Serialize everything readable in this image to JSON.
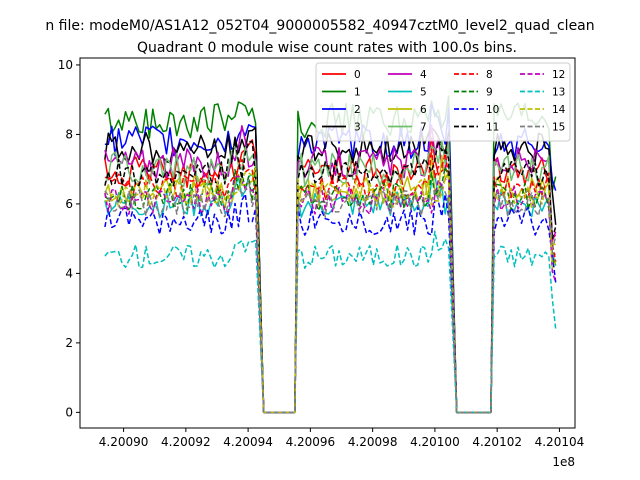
{
  "chart_data": {
    "type": "line",
    "suptitle": "n file: modeM0/AS1A12_052T04_9000005582_40947cztM0_level2_quad_clean",
    "title": "Quadrant 0 module wise count rates with 100.0s bins.",
    "xlabel": "",
    "ylabel": "",
    "x_offset_label": "1e8",
    "xlim": [
      4.200886,
      4.201045
    ],
    "ylim": [
      -0.45,
      10.2
    ],
    "x_ticks": [
      4.2009,
      4.20092,
      4.20094,
      4.20096,
      4.20098,
      4.201,
      4.20102,
      4.20104
    ],
    "x_tick_labels": [
      "4.20090",
      "4.20092",
      "4.20094",
      "4.20096",
      "4.20098",
      "4.20100",
      "4.20102",
      "4.20104"
    ],
    "y_ticks": [
      0,
      2,
      4,
      6,
      8,
      10
    ],
    "y_tick_labels": [
      "0",
      "2",
      "4",
      "6",
      "8",
      "10"
    ],
    "grid": false,
    "legend_placement": "top-right",
    "legend_columns": 4,
    "segments": [
      {
        "x_start": 4.200894,
        "x_end": 4.200943,
        "active": true
      },
      {
        "x_start": 4.200945,
        "x_end": 4.200955,
        "active": false
      },
      {
        "x_start": 4.200956,
        "x_end": 4.201005,
        "active": true
      },
      {
        "x_start": 4.201007,
        "x_end": 4.201018,
        "active": false
      },
      {
        "x_start": 4.201019,
        "x_end": 4.201039,
        "active": true
      }
    ],
    "series": [
      {
        "name": "0",
        "color": "#ff0000",
        "dash": "solid",
        "mean": 6.9,
        "amp": 0.45
      },
      {
        "name": "1",
        "color": "#008000",
        "dash": "solid",
        "mean": 8.4,
        "amp": 0.5
      },
      {
        "name": "2",
        "color": "#0000ff",
        "dash": "solid",
        "mean": 7.8,
        "amp": 0.5
      },
      {
        "name": "3",
        "color": "#000000",
        "dash": "solid",
        "mean": 7.6,
        "amp": 0.45
      },
      {
        "name": "4",
        "color": "#bf00bf",
        "dash": "solid",
        "mean": 7.2,
        "amp": 0.45
      },
      {
        "name": "5",
        "color": "#00bfbf",
        "dash": "solid",
        "mean": 6.0,
        "amp": 0.4
      },
      {
        "name": "6",
        "color": "#bfbf00",
        "dash": "solid",
        "mean": 6.4,
        "amp": 0.4
      },
      {
        "name": "7",
        "color": "#6fbf6f",
        "dash": "solid",
        "mean": 7.0,
        "amp": 0.5
      },
      {
        "name": "8",
        "color": "#ff0000",
        "dash": "dashed",
        "mean": 6.5,
        "amp": 0.4
      },
      {
        "name": "9",
        "color": "#008000",
        "dash": "dashed",
        "mean": 6.2,
        "amp": 0.4
      },
      {
        "name": "10",
        "color": "#0000ff",
        "dash": "dashed",
        "mean": 5.5,
        "amp": 0.4
      },
      {
        "name": "11",
        "color": "#000000",
        "dash": "dashed",
        "mean": 6.9,
        "amp": 0.4
      },
      {
        "name": "12",
        "color": "#bf00bf",
        "dash": "dashed",
        "mean": 6.1,
        "amp": 0.4
      },
      {
        "name": "13",
        "color": "#00bfbf",
        "dash": "dashed",
        "mean": 4.5,
        "amp": 0.35
      },
      {
        "name": "14",
        "color": "#bfbf00",
        "dash": "dashed",
        "mean": 6.3,
        "amp": 0.4
      },
      {
        "name": "15",
        "color": "#7f7f7f",
        "dash": "dashed",
        "mean": 6.0,
        "amp": 0.4
      }
    ]
  }
}
